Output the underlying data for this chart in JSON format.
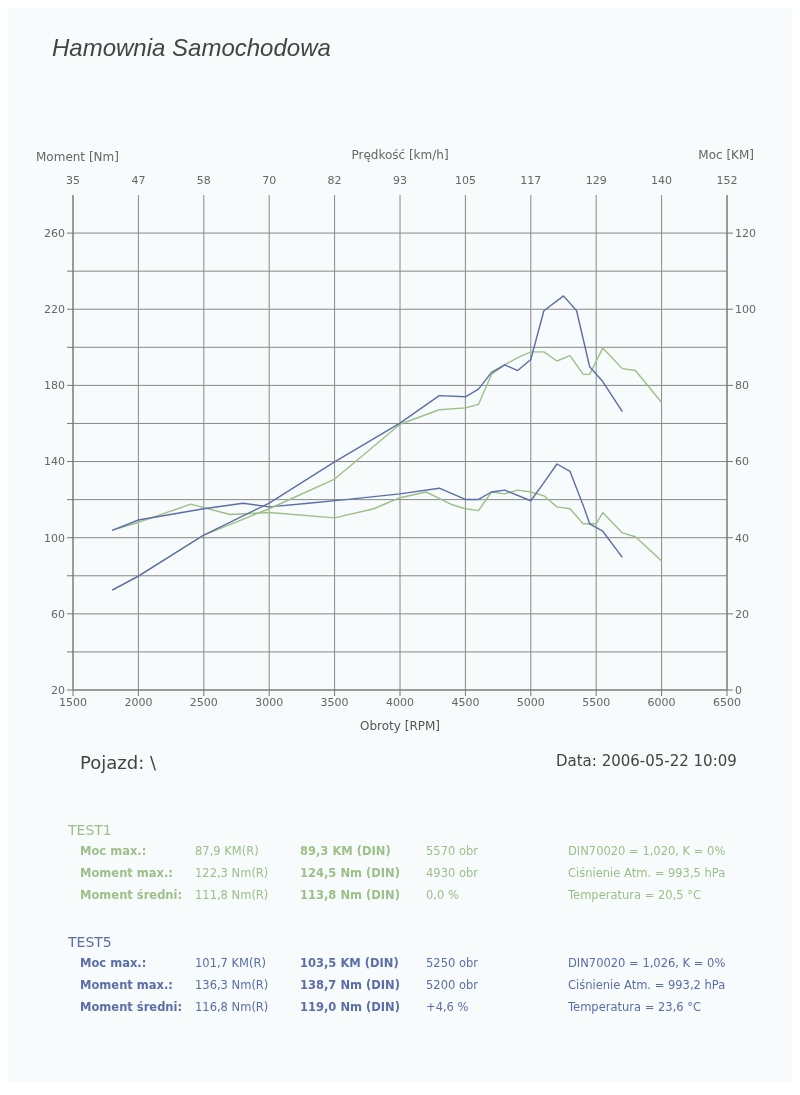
{
  "chart_data": {
    "type": "line",
    "title": "Hamownia Samochodowa",
    "xlabel": "Obroty [RPM]",
    "ylabel": "Moment [Nm]",
    "y2label": "Moc [KM]",
    "x2label": "Prędkość [km/h]",
    "xlim": [
      1500,
      6500
    ],
    "xticks": [
      1500,
      2000,
      2500,
      3000,
      3500,
      4000,
      4500,
      5000,
      5500,
      6000,
      6500
    ],
    "x2lim": [
      35,
      152
    ],
    "x2ticks": [
      35,
      {
        "value": 46.7,
        "label": "47"
      },
      {
        "value": 58.4,
        "label": "58"
      },
      {
        "value": 70.1,
        "label": "70"
      },
      {
        "value": 81.8,
        "label": "82"
      },
      {
        "value": 93.5,
        "label": "93"
      },
      {
        "value": 105.2,
        "label": "105"
      },
      {
        "value": 116.9,
        "label": "117"
      },
      {
        "value": 128.6,
        "label": "129"
      },
      {
        "value": 140.3,
        "label": "140"
      },
      152
    ],
    "ylim": [
      20,
      280
    ],
    "yticks": [
      20,
      {
        "value": 40,
        "label": null
      },
      60,
      {
        "value": 80,
        "label": null
      },
      100,
      {
        "value": 120,
        "label": null
      },
      140,
      {
        "value": 160,
        "label": null
      },
      180,
      {
        "value": 200,
        "label": null
      },
      220,
      {
        "value": 240,
        "label": null
      },
      260
    ],
    "y2lim": [
      0,
      130
    ],
    "y2ticks": [
      0,
      20,
      40,
      60,
      80,
      100,
      120
    ],
    "grid": true,
    "legend": false,
    "marker": "none",
    "line_style": "solid",
    "series": [
      {
        "color": "#9dbf8a",
        "x": [
          1800,
          2000,
          2400,
          2700,
          3000,
          3500,
          3800,
          4000,
          4200,
          4400,
          4500,
          4600,
          4700,
          4800,
          4900,
          5000,
          5100,
          5200,
          5300,
          5400,
          5500,
          5550,
          5700,
          5800,
          6000
        ],
        "values": [
          104,
          108,
          117.6,
          112.2,
          113.2,
          110.4,
          115.2,
          121,
          124,
          117.3,
          115.2,
          114.2,
          124,
          123,
          125,
          124,
          122,
          116.2,
          115.2,
          107.3,
          107.3,
          113.2,
          102.5,
          100.5,
          87.7
        ]
      },
      {
        "color": "#5c6ea8",
        "x": [
          1800,
          2000,
          2500,
          2800,
          3000,
          3300,
          3600,
          4000,
          4300,
          4500,
          4600,
          4700,
          4800,
          5000,
          5100,
          5200,
          5300,
          5400,
          5450,
          5550,
          5700
        ],
        "values": [
          103.8,
          109.3,
          115.2,
          118.1,
          116.2,
          118.1,
          120.1,
          123,
          126,
          120.1,
          120.1,
          124,
          125,
          119.4,
          128.9,
          138.7,
          134.8,
          117.1,
          107.3,
          103.4,
          89.7
        ]
      },
      {
        "color": "#9dbf8a",
        "axis": "y2",
        "x": [
          1800,
          2000,
          2500,
          3000,
          3500,
          3800,
          4000,
          4300,
          4500,
          4600,
          4700,
          4800,
          4900,
          5000,
          5100,
          5200,
          5300,
          5400,
          5450,
          5550,
          5700,
          5800,
          6000
        ],
        "values": [
          26.2,
          29.9,
          40.7,
          47.6,
          55.4,
          64,
          69.8,
          73.6,
          74.1,
          75,
          82.9,
          85.4,
          87.3,
          88.8,
          88.8,
          86.4,
          87.8,
          82.9,
          82.9,
          89.8,
          84.4,
          83.9,
          75.5
        ]
      },
      {
        "color": "#5c6ea8",
        "axis": "y2",
        "x": [
          1800,
          2000,
          2500,
          3000,
          3500,
          3800,
          4000,
          4300,
          4500,
          4600,
          4700,
          4800,
          4900,
          5000,
          5100,
          5250,
          5350,
          5450,
          5550,
          5700
        ],
        "values": [
          26.2,
          29.9,
          40.7,
          49.1,
          59.9,
          66,
          70.1,
          77.3,
          77,
          79,
          83.4,
          85.4,
          83.9,
          86.8,
          99.6,
          103.5,
          99.6,
          84.9,
          81,
          73.1
        ]
      }
    ],
    "annotations": [
      "Pojazd: \\",
      "Data: 2006-05-22  10:09",
      "TEST1",
      "Moc max.:",
      "87,9 KM(R)",
      "89,3 KM (DIN)",
      "5570 obr",
      "DIN70020 = 1,020, K = 0%",
      "Moment max.:",
      "122,3 Nm(R)",
      "124,5 Nm (DIN)",
      "4930 obr",
      "Ciśnienie Atm. = 993,5 hPa",
      "Moment średni:",
      "111,8 Nm(R)",
      "113,8 Nm (DIN)",
      "0,0 %",
      "Temperatura = 20,5 °C",
      "TEST5",
      "Moc max.:",
      "101,7 KM(R)",
      "103,5 KM (DIN)",
      "5250 obr",
      "DIN70020 = 1,026, K = 0%",
      "Moment max.:",
      "136,3 Nm(R)",
      "138,7 Nm (DIN)",
      "5200 obr",
      "Ciśnienie Atm. = 993,2 hPa",
      "Moment średni:",
      "116,8 Nm(R)",
      "119,0 Nm (DIN)",
      "+4,6 %",
      "Temperatura = 23,6 °C"
    ]
  }
}
